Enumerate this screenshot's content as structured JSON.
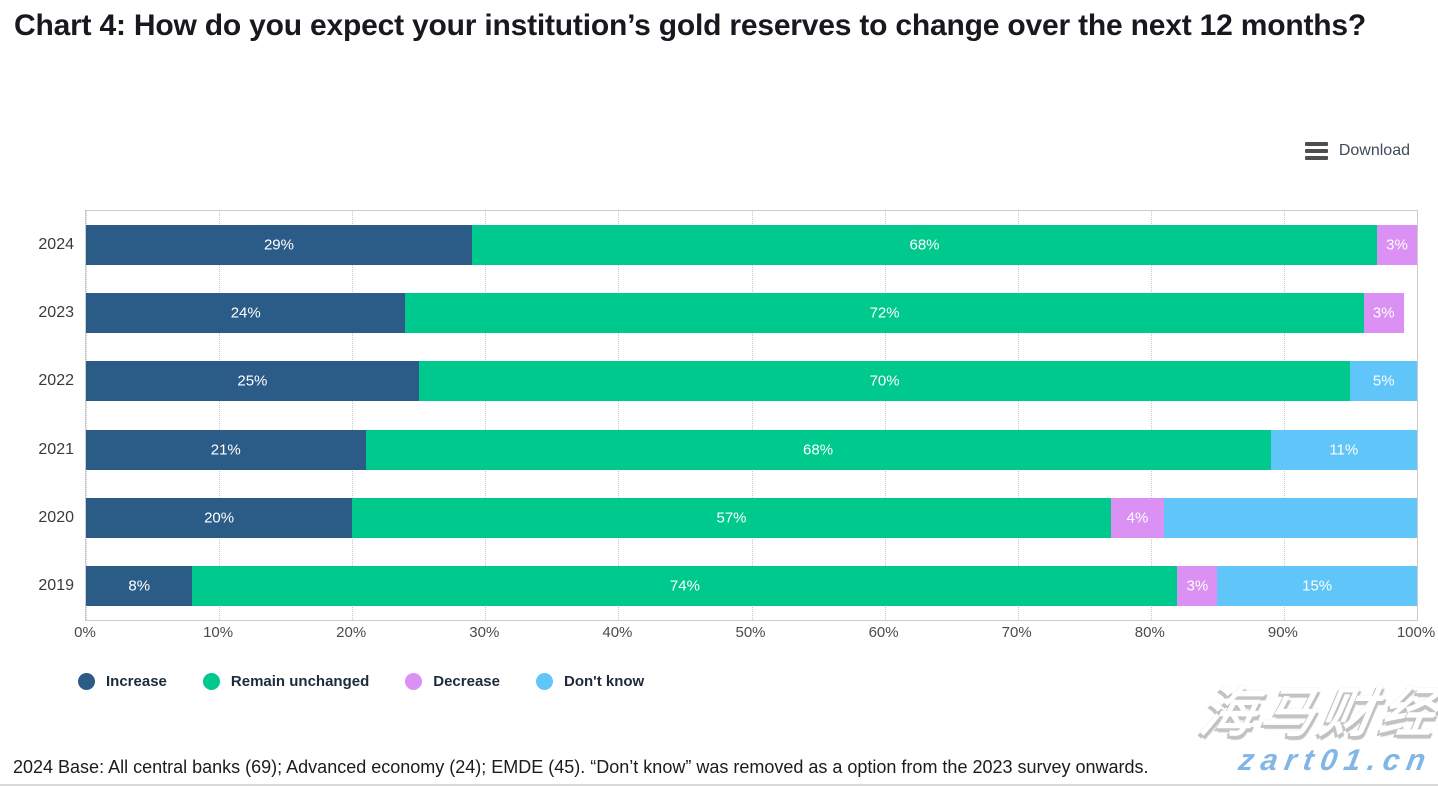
{
  "chart_data": {
    "type": "bar",
    "orientation": "horizontal",
    "stacked": true,
    "title": "Chart 4: How do you expect your institution’s gold reserves to change over the next 12 months?",
    "categories": [
      "2024",
      "2023",
      "2022",
      "2021",
      "2020",
      "2019"
    ],
    "series": [
      {
        "name": "Increase",
        "color": "#2b5c88",
        "values": [
          29,
          24,
          25,
          21,
          20,
          8
        ],
        "labels": [
          "29%",
          "24%",
          "25%",
          "21%",
          "20%",
          "8%"
        ]
      },
      {
        "name": "Remain unchanged",
        "color": "#00c98e",
        "values": [
          68,
          72,
          70,
          68,
          57,
          74
        ],
        "labels": [
          "68%",
          "72%",
          "70%",
          "68%",
          "57%",
          "74%"
        ]
      },
      {
        "name": "Decrease",
        "color": "#db91f4",
        "values": [
          3,
          3,
          0,
          0,
          4,
          3
        ],
        "labels": [
          "3%",
          "3%",
          "",
          "",
          "4%",
          "3%"
        ]
      },
      {
        "name": "Don't know",
        "color": "#60c5f8",
        "values": [
          0,
          0,
          5,
          11,
          19,
          15
        ],
        "labels": [
          "",
          "",
          "5%",
          "11%",
          "",
          "15%"
        ]
      }
    ],
    "xlim": [
      0,
      100
    ],
    "x_ticks": [
      "0%",
      "10%",
      "20%",
      "30%",
      "40%",
      "50%",
      "60%",
      "70%",
      "80%",
      "90%",
      "100%"
    ],
    "grid": "vertical-dotted",
    "legend_position": "bottom",
    "bar_label_color": "#ffffff"
  },
  "toolbar": {
    "download_label": "Download"
  },
  "footer": {
    "note": "2024 Base: All central banks (69); Advanced economy (24); EMDE (45). “Don’t know” was removed as a option from the 2023 survey onwards."
  },
  "watermark": {
    "brand": "海马财经",
    "domain": "zart01.cn"
  }
}
